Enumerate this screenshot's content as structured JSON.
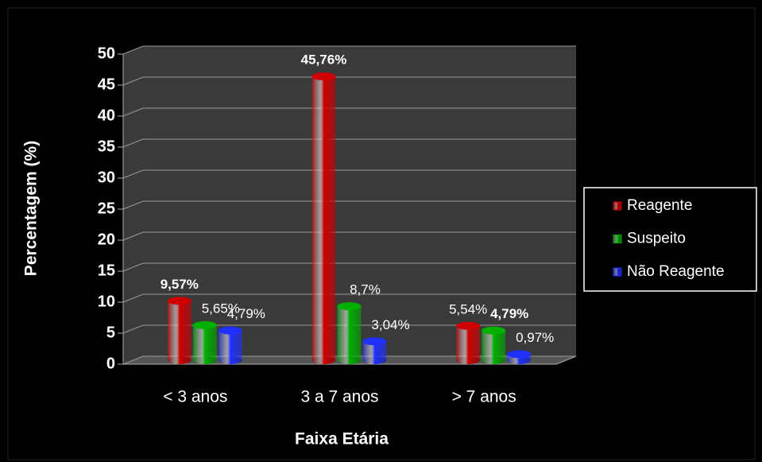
{
  "chart_data": {
    "type": "bar",
    "x_label": "Faixa Etária",
    "y_label": "Percentagem (%)",
    "categories": [
      "< 3 anos",
      "3 a 7 anos",
      "> 7 anos"
    ],
    "series": [
      {
        "name": "Reagente",
        "color": "#d00000",
        "values": [
          9.57,
          45.76,
          5.54
        ],
        "value_labels": [
          "9,57%",
          "45,76%",
          "5,54%"
        ]
      },
      {
        "name": "Suspeito",
        "color": "#00b000",
        "values": [
          5.65,
          8.7,
          4.79
        ],
        "value_labels": [
          "5,65%",
          "8,7%",
          "4,79%"
        ]
      },
      {
        "name": "Não Reagente",
        "color": "#2030ff",
        "values": [
          4.79,
          3.04,
          0.97
        ],
        "value_labels": [
          "4,79%",
          "3,04%",
          "0,97%"
        ]
      }
    ],
    "ylim": [
      0,
      50
    ],
    "yticks": [
      0,
      5,
      10,
      15,
      20,
      25,
      30,
      35,
      40,
      45,
      50
    ],
    "grid": true,
    "legend": "right"
  }
}
